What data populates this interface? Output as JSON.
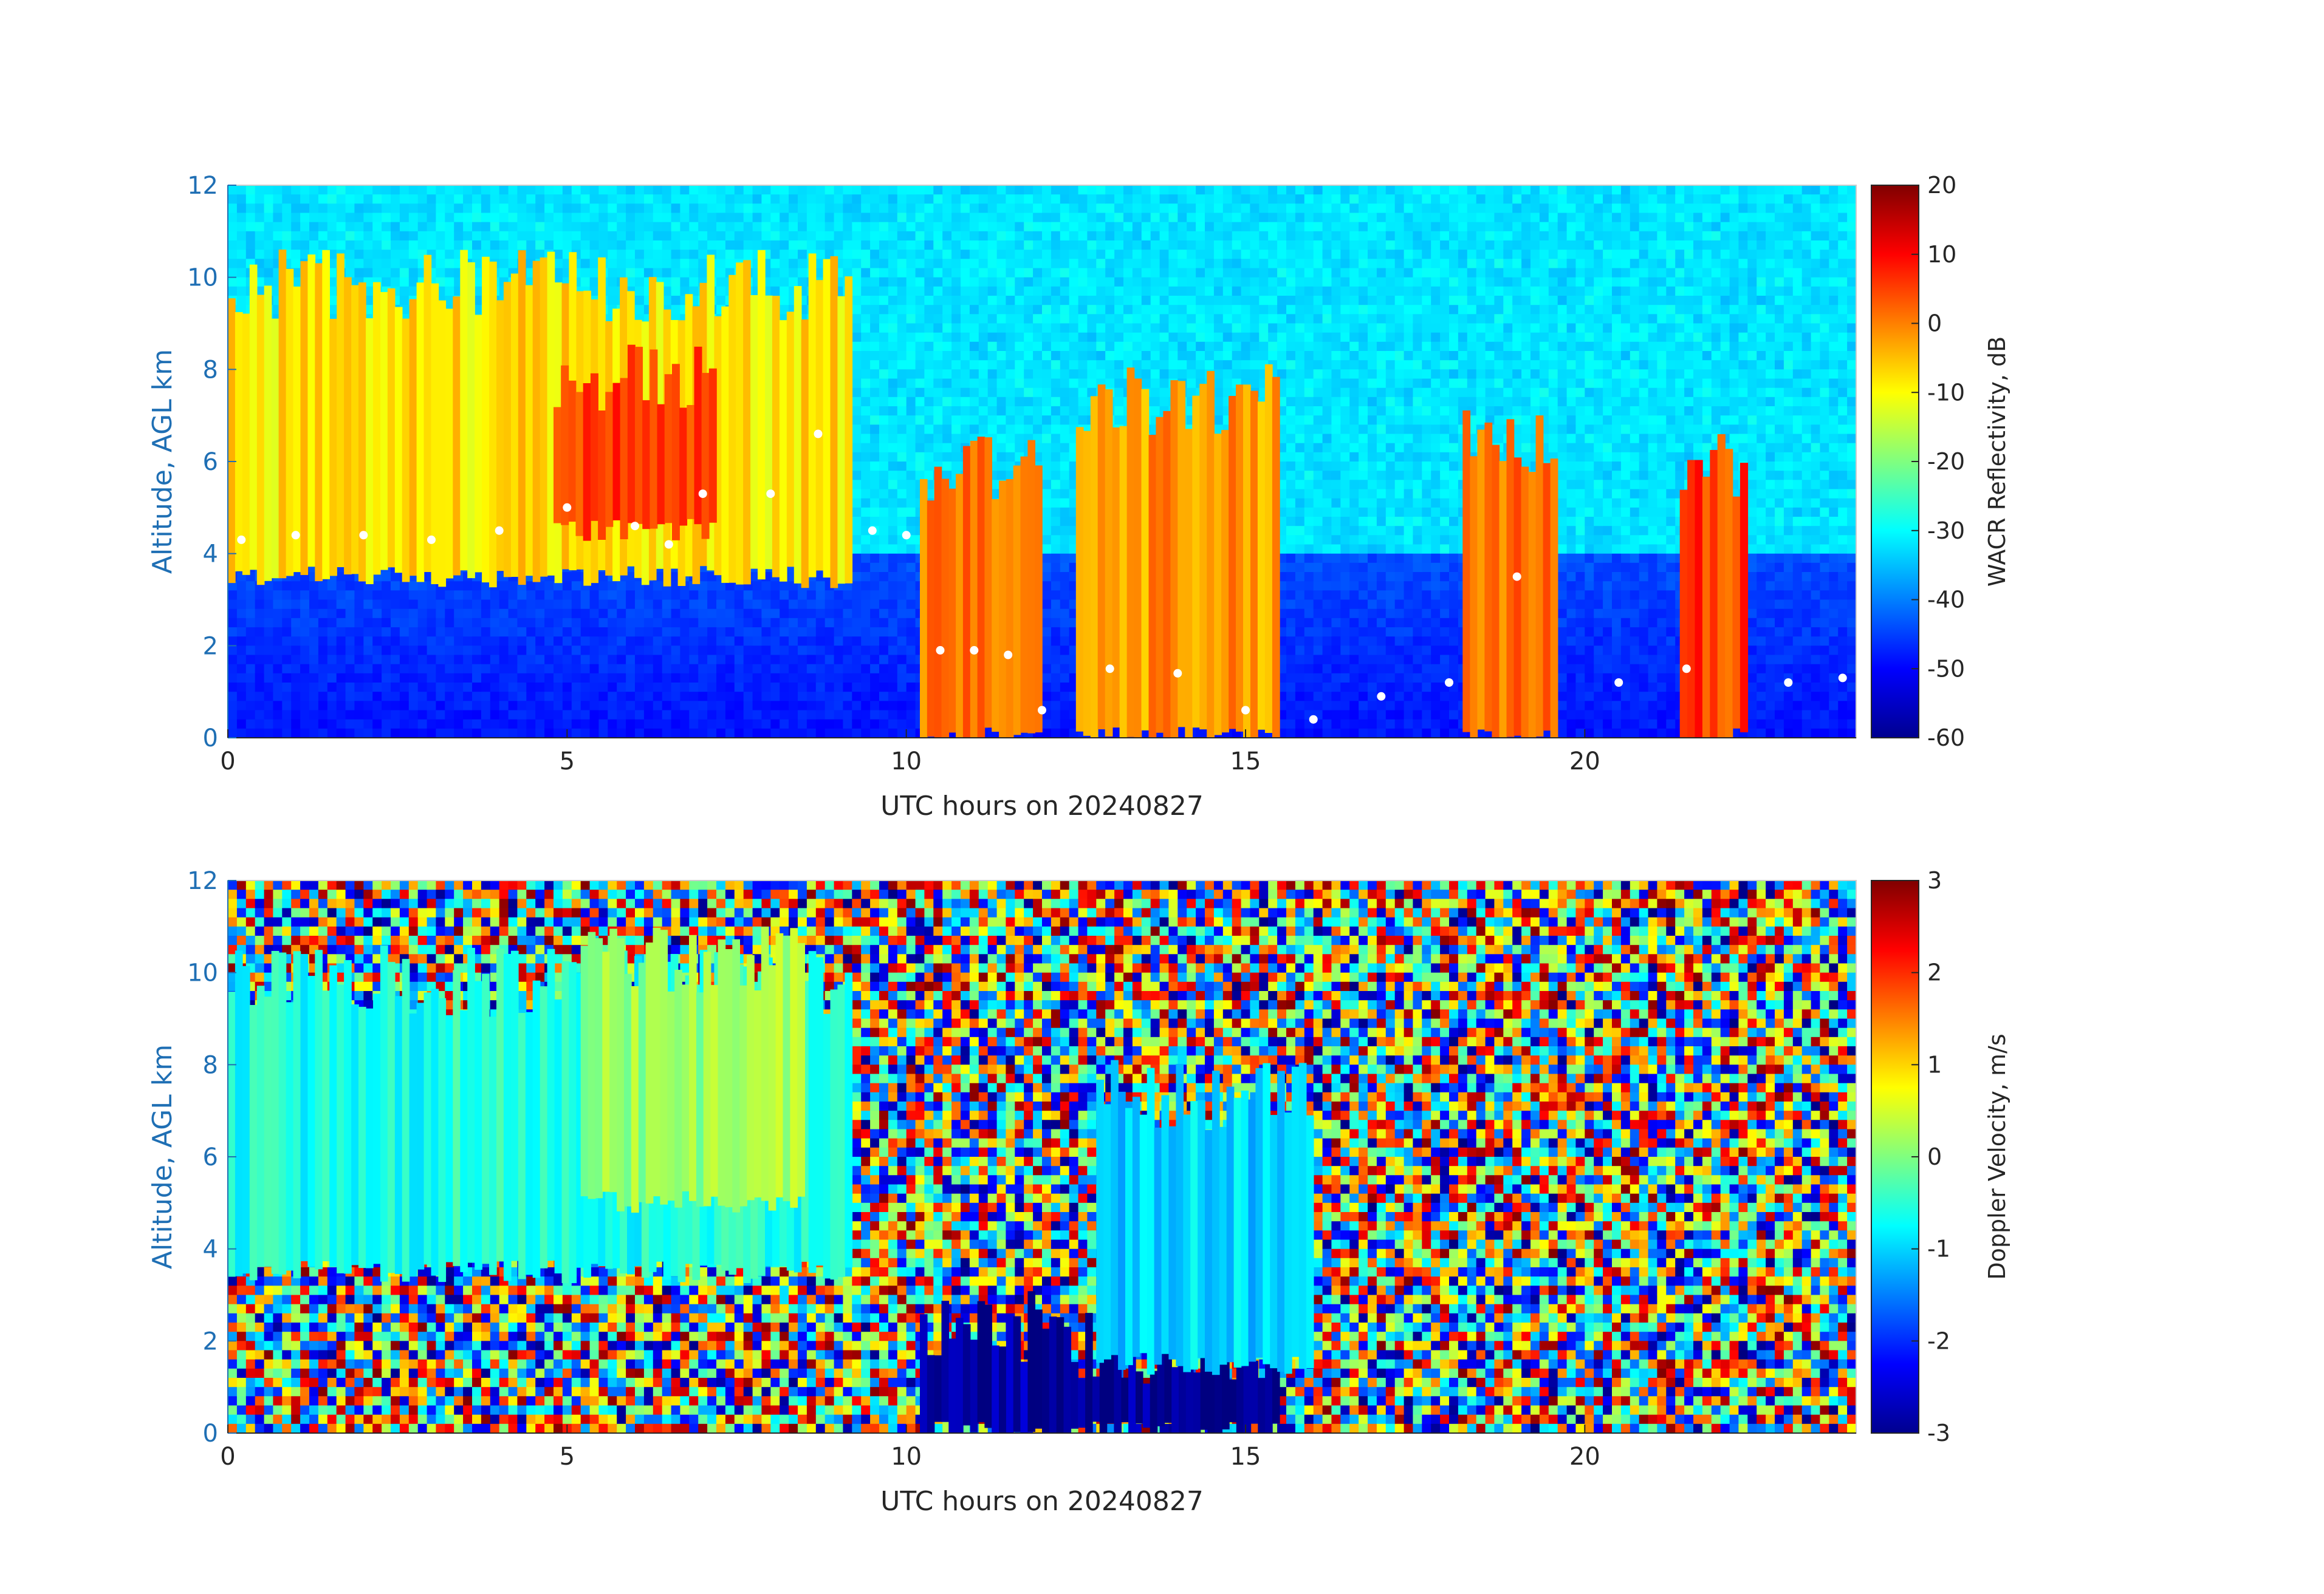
{
  "chart_data": [
    {
      "type": "heatmap",
      "xlabel": "UTC hours on 20240827",
      "ylabel": "Altitude, AGL km",
      "xlim": [
        0,
        24
      ],
      "ylim": [
        0,
        12
      ],
      "xticks": [
        "0",
        "5",
        "10",
        "15",
        "20"
      ],
      "yticks": [
        "0",
        "2",
        "4",
        "6",
        "8",
        "10",
        "12"
      ],
      "colorbar": {
        "label": "WACR Reflectivity, dB",
        "range": [
          -60,
          20
        ],
        "ticks": [
          "20",
          "10",
          "0",
          "-10",
          "-20",
          "-30",
          "-40",
          "-50",
          "-60"
        ],
        "colormap": "jet"
      },
      "features": [
        {
          "hour_start": 0,
          "hour_end": 9.2,
          "alt_bottom_km": 3.5,
          "alt_top_km": 9.5,
          "dbz": -8
        },
        {
          "hour_start": 4.8,
          "hour_end": 7.2,
          "alt_bottom_km": 4.5,
          "alt_top_km": 7.5,
          "dbz": 5
        },
        {
          "hour_start": 10.2,
          "hour_end": 12.0,
          "alt_bottom_km": 0,
          "alt_top_km": 5.5,
          "dbz": 0
        },
        {
          "hour_start": 12.5,
          "hour_end": 15.5,
          "alt_bottom_km": 0,
          "alt_top_km": 7.0,
          "dbz": -2
        },
        {
          "hour_start": 18.2,
          "hour_end": 19.6,
          "alt_bottom_km": 0,
          "alt_top_km": 6.0,
          "dbz": 2
        },
        {
          "hour_start": 21.4,
          "hour_end": 22.4,
          "alt_bottom_km": 0,
          "alt_top_km": 5.5,
          "dbz": 5
        }
      ],
      "cloud_base_points": [
        {
          "hour": 0.2,
          "km": 4.3
        },
        {
          "hour": 1.0,
          "km": 4.4
        },
        {
          "hour": 2.0,
          "km": 4.4
        },
        {
          "hour": 3.0,
          "km": 4.3
        },
        {
          "hour": 4.0,
          "km": 4.5
        },
        {
          "hour": 5.0,
          "km": 5.0
        },
        {
          "hour": 6.0,
          "km": 4.6
        },
        {
          "hour": 6.5,
          "km": 4.2
        },
        {
          "hour": 7.0,
          "km": 5.3
        },
        {
          "hour": 8.0,
          "km": 5.3
        },
        {
          "hour": 8.7,
          "km": 6.6
        },
        {
          "hour": 9.5,
          "km": 4.5
        },
        {
          "hour": 10.0,
          "km": 4.4
        },
        {
          "hour": 10.5,
          "km": 1.9
        },
        {
          "hour": 11.0,
          "km": 1.9
        },
        {
          "hour": 11.5,
          "km": 1.8
        },
        {
          "hour": 12.0,
          "km": 0.6
        },
        {
          "hour": 13.0,
          "km": 1.5
        },
        {
          "hour": 14.0,
          "km": 1.4
        },
        {
          "hour": 15.0,
          "km": 0.6
        },
        {
          "hour": 16.0,
          "km": 0.4
        },
        {
          "hour": 17.0,
          "km": 0.9
        },
        {
          "hour": 18.0,
          "km": 1.2
        },
        {
          "hour": 19.0,
          "km": 3.5
        },
        {
          "hour": 20.5,
          "km": 1.2
        },
        {
          "hour": 21.5,
          "km": 1.5
        },
        {
          "hour": 23.0,
          "km": 1.2
        },
        {
          "hour": 23.8,
          "km": 1.3
        }
      ]
    },
    {
      "type": "heatmap",
      "xlabel": "UTC hours on 20240827",
      "ylabel": "Altitude, AGL km",
      "xlim": [
        0,
        24
      ],
      "ylim": [
        0,
        12
      ],
      "xticks": [
        "0",
        "5",
        "10",
        "15",
        "20"
      ],
      "yticks": [
        "0",
        "2",
        "4",
        "6",
        "8",
        "10",
        "12"
      ],
      "colorbar": {
        "label": "Doppler Velocity, m/s",
        "range": [
          -3,
          3
        ],
        "ticks": [
          "3",
          "2",
          "1",
          "0",
          "-1",
          "-2",
          "-3"
        ],
        "colormap": "jet"
      },
      "features": [
        {
          "hour_start": 0,
          "hour_end": 9.2,
          "alt_bottom_km": 3.5,
          "alt_top_km": 9.5,
          "ms": -0.6
        },
        {
          "hour_start": 5.2,
          "hour_end": 8.5,
          "alt_bottom_km": 5.0,
          "alt_top_km": 10.0,
          "ms": 0.2
        },
        {
          "hour_start": 10.2,
          "hour_end": 12.0,
          "alt_bottom_km": 0,
          "alt_top_km": 2.0,
          "ms": -2.7
        },
        {
          "hour_start": 12.0,
          "hour_end": 15.5,
          "alt_bottom_km": 0,
          "alt_top_km": 1.5,
          "ms": -2.9
        },
        {
          "hour_start": 12.8,
          "hour_end": 16.0,
          "alt_bottom_km": 1.5,
          "alt_top_km": 7.0,
          "ms": -1.0
        }
      ]
    }
  ]
}
